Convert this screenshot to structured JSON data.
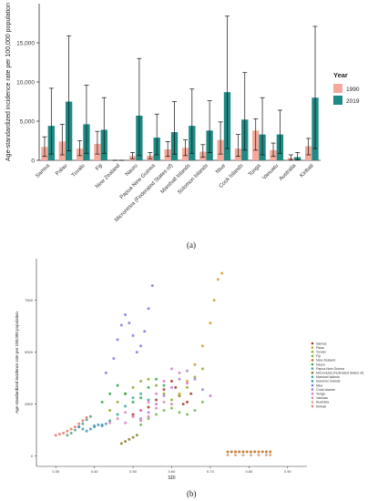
{
  "labels": {
    "a": "(a)",
    "b": "(b)"
  },
  "chart_data": [
    {
      "type": "bar",
      "ylabel": "Age-standardized incidence rate per 100,000 population",
      "ylim": [
        0,
        20000
      ],
      "yticks": [
        "0",
        "5,000",
        "10,000",
        "15,000"
      ],
      "legend_title": "Year",
      "legend_placement": "right",
      "categories": [
        "Samoa",
        "Palau",
        "Tuvalu",
        "Fiji",
        "New Zealand",
        "Nauru",
        "Papua New Guinea",
        "Micronesia (Federated States of)",
        "Marshall Islands",
        "Solomon Islands",
        "Niue",
        "Cook Islands",
        "Tonga",
        "Vanuatu",
        "Australia",
        "Kiribati"
      ],
      "series": [
        {
          "name": "1990",
          "color": "#f4a99a",
          "values": [
            1700,
            2400,
            1500,
            2100,
            0,
            550,
            600,
            1400,
            1600,
            1100,
            2600,
            1500,
            3800,
            1300,
            300,
            1800
          ],
          "lower": [
            500,
            700,
            600,
            800,
            0,
            200,
            200,
            500,
            600,
            400,
            800,
            500,
            1300,
            500,
            50,
            700
          ],
          "upper": [
            3000,
            4600,
            2500,
            3700,
            0,
            1000,
            1000,
            2400,
            2600,
            2000,
            4900,
            3300,
            5300,
            2200,
            700,
            2800
          ]
        },
        {
          "name": "2019",
          "color": "#1f8a84",
          "values": [
            4400,
            7500,
            4600,
            3900,
            0,
            5700,
            2900,
            3600,
            4400,
            3800,
            8700,
            5200,
            3300,
            3300,
            400,
            8000
          ],
          "lower": [
            800,
            1200,
            900,
            900,
            0,
            600,
            700,
            800,
            900,
            1000,
            1500,
            1300,
            700,
            900,
            50,
            1500
          ],
          "upper": [
            9200,
            15900,
            9600,
            8000,
            0,
            13000,
            5900,
            7500,
            9100,
            7600,
            18400,
            11200,
            8000,
            6400,
            1000,
            17100
          ]
        }
      ]
    },
    {
      "type": "scatter",
      "xlabel": "SDI",
      "ylabel": "Age-standardized incidence rate per 100,000 population",
      "xlim": [
        0.25,
        0.95
      ],
      "ylim": [
        -500,
        9500
      ],
      "xticks": [
        "0.30",
        "0.40",
        "0.50",
        "0.60",
        "0.70",
        "0.80",
        "0.90"
      ],
      "yticks": [
        "0",
        "2500",
        "5000",
        "7500"
      ],
      "legend_placement": "right",
      "series": [
        {
          "name": "Samoa",
          "color": "#a33a2a",
          "points": [
            [
              0.5,
              2000
            ],
            [
              0.52,
              2200
            ],
            [
              0.54,
              2350
            ],
            [
              0.56,
              2700
            ],
            [
              0.58,
              3200
            ],
            [
              0.6,
              3600
            ],
            [
              0.61,
              3300
            ],
            [
              0.62,
              2900
            ],
            [
              0.63,
              2500
            ],
            [
              0.64,
              2600
            ],
            [
              0.65,
              3000
            ]
          ]
        },
        {
          "name": "Palau",
          "color": "#cfa12b",
          "points": [
            [
              0.62,
              3000
            ],
            [
              0.64,
              3600
            ],
            [
              0.66,
              4400
            ],
            [
              0.68,
              5300
            ],
            [
              0.7,
              6400
            ],
            [
              0.71,
              7500
            ],
            [
              0.72,
              8500
            ],
            [
              0.73,
              8800
            ]
          ]
        },
        {
          "name": "Tuvalu",
          "color": "#8faa2e",
          "points": [
            [
              0.44,
              2200
            ],
            [
              0.46,
              2600
            ],
            [
              0.48,
              3000
            ],
            [
              0.5,
              3300
            ],
            [
              0.52,
              3600
            ],
            [
              0.54,
              3700
            ],
            [
              0.56,
              3400
            ],
            [
              0.58,
              3000
            ],
            [
              0.6,
              2700
            ],
            [
              0.62,
              2900
            ],
            [
              0.64,
              3300
            ],
            [
              0.66,
              3800
            ],
            [
              0.68,
              4200
            ]
          ]
        },
        {
          "name": "Fiji",
          "color": "#6fb84a",
          "points": [
            [
              0.52,
              1500
            ],
            [
              0.54,
              1800
            ],
            [
              0.56,
              2000
            ],
            [
              0.58,
              2200
            ],
            [
              0.6,
              2300
            ],
            [
              0.62,
              2100
            ],
            [
              0.64,
              2000
            ],
            [
              0.66,
              2200
            ],
            [
              0.68,
              2600
            ]
          ]
        },
        {
          "name": "New Zealand",
          "color": "#bf6a1f",
          "points": [
            [
              0.745,
              200
            ],
            [
              0.755,
              200
            ],
            [
              0.765,
              200
            ],
            [
              0.775,
              200
            ],
            [
              0.785,
              200
            ],
            [
              0.795,
              200
            ],
            [
              0.805,
              200
            ],
            [
              0.815,
              200
            ],
            [
              0.825,
              200
            ],
            [
              0.835,
              200
            ],
            [
              0.845,
              200
            ],
            [
              0.855,
              200
            ]
          ]
        },
        {
          "name": "Nauru",
          "color": "#2fa84f",
          "points": [
            [
              0.42,
              2600
            ],
            [
              0.44,
              3000
            ],
            [
              0.46,
              3400
            ],
            [
              0.48,
              3000
            ],
            [
              0.5,
              2600
            ],
            [
              0.52,
              2800
            ],
            [
              0.54,
              3300
            ],
            [
              0.56,
              3700
            ],
            [
              0.58,
              3400
            ]
          ]
        },
        {
          "name": "Papua New Guinea",
          "color": "#56a08a",
          "points": [
            [
              0.33,
              1000
            ],
            [
              0.34,
              1100
            ],
            [
              0.35,
              1250
            ],
            [
              0.36,
              1400
            ],
            [
              0.37,
              1550
            ],
            [
              0.38,
              1750
            ],
            [
              0.39,
              1900
            ]
          ]
        },
        {
          "name": "Micronesia (Federated States of)",
          "color": "#8a7f2a",
          "points": [
            [
              0.47,
              600
            ],
            [
              0.48,
              700
            ],
            [
              0.49,
              800
            ],
            [
              0.5,
              900
            ],
            [
              0.51,
              1000
            ]
          ]
        },
        {
          "name": "Marshall Islands",
          "color": "#3aa6a0",
          "points": [
            [
              0.4,
              1400
            ],
            [
              0.42,
              1500
            ],
            [
              0.44,
              1700
            ],
            [
              0.46,
              2000
            ],
            [
              0.48,
              2400
            ],
            [
              0.5,
              2800
            ],
            [
              0.52,
              3000
            ],
            [
              0.54,
              2700
            ]
          ]
        },
        {
          "name": "Solomon Islands",
          "color": "#4a8fc4",
          "points": [
            [
              0.36,
              1400
            ],
            [
              0.37,
              1300
            ],
            [
              0.38,
              1200
            ],
            [
              0.39,
              1300
            ],
            [
              0.4,
              1450
            ],
            [
              0.41,
              1500
            ],
            [
              0.42,
              1450
            ],
            [
              0.43,
              1550
            ]
          ]
        },
        {
          "name": "Niue",
          "color": "#7a7fe0",
          "points": [
            [
              0.43,
              4000
            ],
            [
              0.45,
              4700
            ],
            [
              0.46,
              5600
            ],
            [
              0.47,
              6300
            ],
            [
              0.48,
              6800
            ],
            [
              0.49,
              6400
            ],
            [
              0.5,
              5800
            ],
            [
              0.51,
              5000
            ],
            [
              0.52,
              5300
            ],
            [
              0.53,
              6000
            ],
            [
              0.54,
              7100
            ],
            [
              0.55,
              8200
            ]
          ]
        },
        {
          "name": "Cook Islands",
          "color": "#b07ae0",
          "points": [
            [
              0.52,
              1800
            ],
            [
              0.54,
              2100
            ],
            [
              0.56,
              2500
            ],
            [
              0.58,
              2900
            ],
            [
              0.6,
              3300
            ],
            [
              0.62,
              3700
            ],
            [
              0.64,
              4100
            ],
            [
              0.66,
              3700
            ],
            [
              0.68,
              3200
            ],
            [
              0.7,
              2900
            ]
          ]
        },
        {
          "name": "Tonga",
          "color": "#e07ac4",
          "points": [
            [
              0.48,
              1600
            ],
            [
              0.5,
              1900
            ],
            [
              0.52,
              2200
            ],
            [
              0.54,
              2600
            ],
            [
              0.56,
              3000
            ],
            [
              0.58,
              3600
            ],
            [
              0.6,
              4200
            ],
            [
              0.62,
              4000
            ],
            [
              0.64,
              3500
            ]
          ]
        },
        {
          "name": "Vanuatu",
          "color": "#e084a8",
          "points": [
            [
              0.44,
              1600
            ],
            [
              0.46,
              1800
            ],
            [
              0.48,
              2100
            ],
            [
              0.5,
              1900
            ],
            [
              0.52,
              1700
            ],
            [
              0.54,
              1900
            ],
            [
              0.56,
              2300
            ],
            [
              0.58,
              2600
            ],
            [
              0.6,
              2500
            ]
          ]
        },
        {
          "name": "Australia",
          "color": "#d9a07a",
          "points": [
            [
              0.745,
              50
            ],
            [
              0.765,
              50
            ],
            [
              0.785,
              50
            ],
            [
              0.805,
              50
            ],
            [
              0.825,
              50
            ],
            [
              0.845,
              50
            ],
            [
              0.855,
              50
            ]
          ]
        },
        {
          "name": "Kiribati",
          "color": "#e47a6a",
          "points": [
            [
              0.3,
              1000
            ],
            [
              0.31,
              1050
            ],
            [
              0.32,
              1100
            ],
            [
              0.33,
              1200
            ],
            [
              0.34,
              1300
            ],
            [
              0.35,
              1400
            ],
            [
              0.36,
              1550
            ],
            [
              0.37,
              1700
            ],
            [
              0.38,
              1850
            ]
          ]
        }
      ]
    }
  ]
}
